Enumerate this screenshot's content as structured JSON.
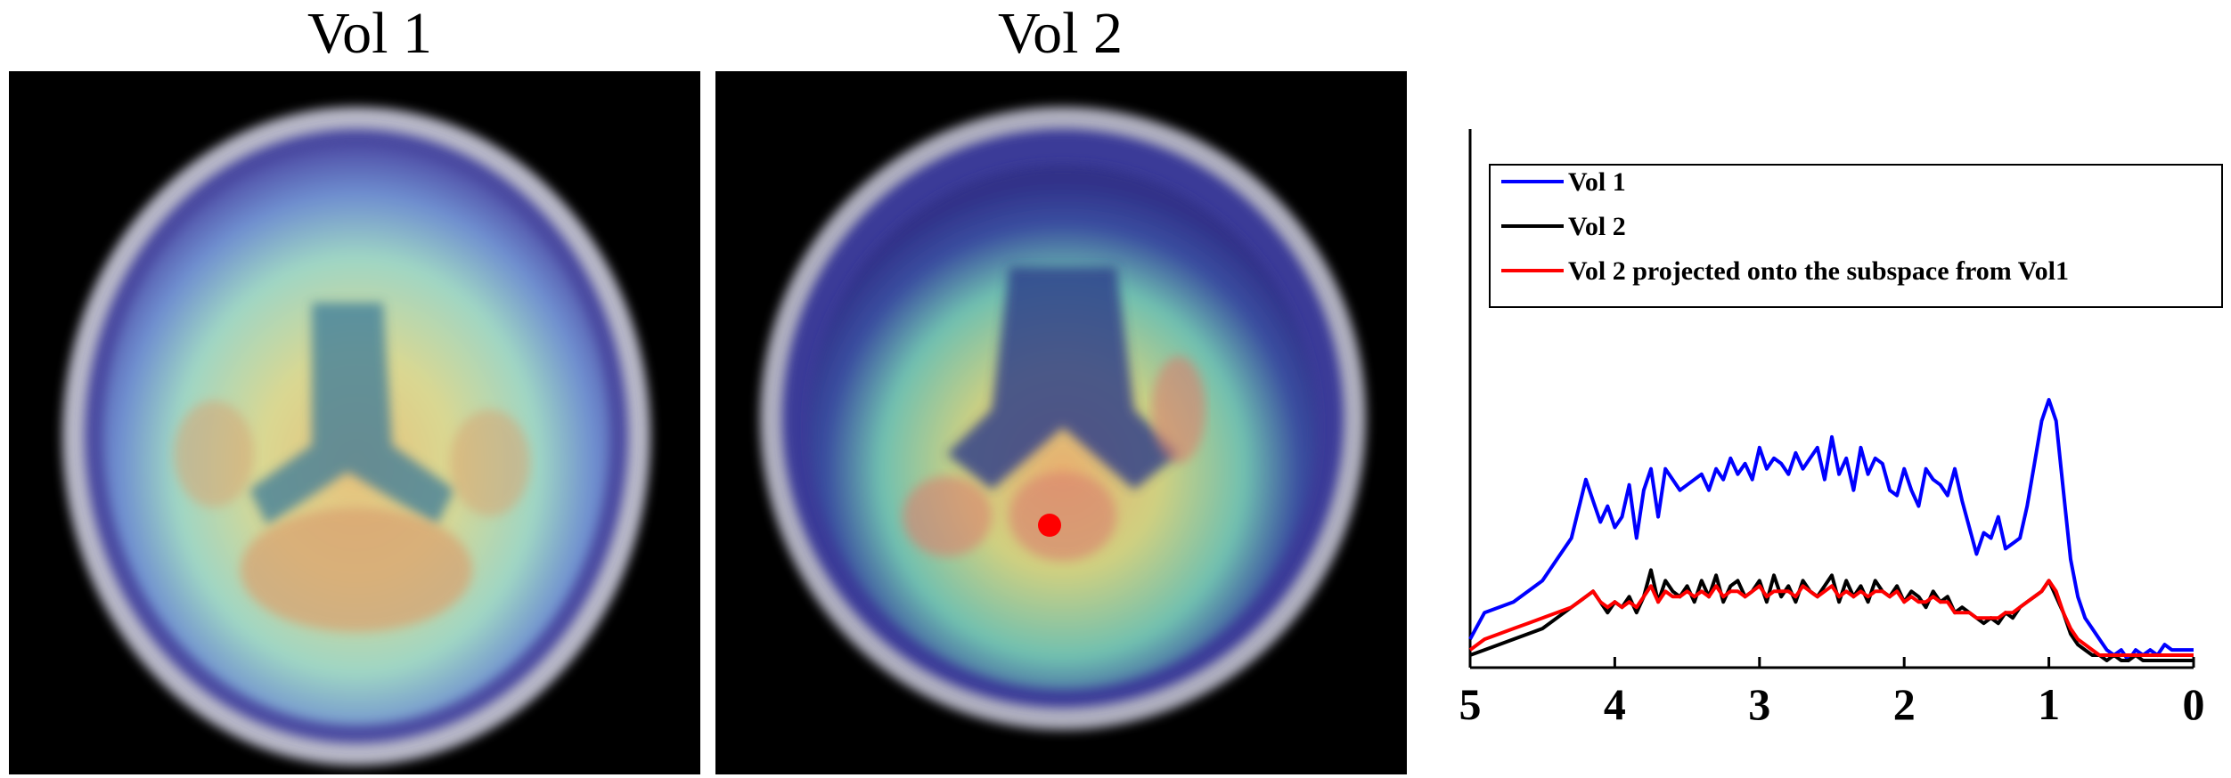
{
  "panels": {
    "vol1_title": "Vol 1",
    "vol2_title": "Vol 2"
  },
  "colors": {
    "vol1": "#0000ff",
    "vol2": "#000000",
    "projected": "#ff0000",
    "marker": "#ff0000"
  },
  "chart_data": {
    "type": "line",
    "xlim": [
      5,
      0
    ],
    "ylim": [
      0,
      1
    ],
    "x_ticks": [
      "5",
      "4",
      "3",
      "2",
      "1",
      "0"
    ],
    "legend_position": "top",
    "grid": false,
    "series": [
      {
        "name": "Vol 1",
        "x": [
          5,
          4.9,
          4.8,
          4.7,
          4.6,
          4.5,
          4.4,
          4.3,
          4.2,
          4.15,
          4.1,
          4.05,
          4,
          3.95,
          3.9,
          3.85,
          3.8,
          3.75,
          3.7,
          3.65,
          3.6,
          3.55,
          3.5,
          3.45,
          3.4,
          3.35,
          3.3,
          3.25,
          3.2,
          3.15,
          3.1,
          3.05,
          3,
          2.95,
          2.9,
          2.85,
          2.8,
          2.75,
          2.7,
          2.65,
          2.6,
          2.55,
          2.5,
          2.45,
          2.4,
          2.35,
          2.3,
          2.25,
          2.2,
          2.15,
          2.1,
          2.05,
          2,
          1.95,
          1.9,
          1.85,
          1.8,
          1.75,
          1.7,
          1.65,
          1.6,
          1.55,
          1.5,
          1.45,
          1.4,
          1.35,
          1.3,
          1.25,
          1.2,
          1.15,
          1.1,
          1.05,
          1,
          0.95,
          0.9,
          0.85,
          0.8,
          0.75,
          0.7,
          0.65,
          0.6,
          0.55,
          0.5,
          0.45,
          0.4,
          0.35,
          0.3,
          0.25,
          0.2,
          0.15,
          0.1,
          0.05,
          0
        ],
        "y": [
          0.05,
          0.1,
          0.11,
          0.12,
          0.14,
          0.16,
          0.2,
          0.24,
          0.35,
          0.31,
          0.27,
          0.3,
          0.26,
          0.28,
          0.34,
          0.24,
          0.33,
          0.37,
          0.28,
          0.37,
          0.35,
          0.33,
          0.34,
          0.35,
          0.36,
          0.33,
          0.37,
          0.35,
          0.39,
          0.36,
          0.38,
          0.35,
          0.41,
          0.37,
          0.39,
          0.38,
          0.36,
          0.4,
          0.37,
          0.39,
          0.41,
          0.35,
          0.43,
          0.36,
          0.39,
          0.33,
          0.41,
          0.36,
          0.39,
          0.38,
          0.33,
          0.32,
          0.37,
          0.33,
          0.3,
          0.37,
          0.35,
          0.34,
          0.32,
          0.37,
          0.31,
          0.26,
          0.21,
          0.25,
          0.24,
          0.28,
          0.22,
          0.23,
          0.24,
          0.3,
          0.38,
          0.46,
          0.5,
          0.46,
          0.33,
          0.2,
          0.13,
          0.09,
          0.07,
          0.05,
          0.03,
          0.02,
          0.03,
          0.01,
          0.03,
          0.02,
          0.03,
          0.02,
          0.04,
          0.03,
          0.03,
          0.03,
          0.03
        ]
      },
      {
        "name": "Vol 2",
        "x": [
          5,
          4.9,
          4.8,
          4.7,
          4.6,
          4.5,
          4.4,
          4.3,
          4.2,
          4.15,
          4.1,
          4.05,
          4,
          3.95,
          3.9,
          3.85,
          3.8,
          3.75,
          3.7,
          3.65,
          3.6,
          3.55,
          3.5,
          3.45,
          3.4,
          3.35,
          3.3,
          3.25,
          3.2,
          3.15,
          3.1,
          3.05,
          3,
          2.95,
          2.9,
          2.85,
          2.8,
          2.75,
          2.7,
          2.65,
          2.6,
          2.55,
          2.5,
          2.45,
          2.4,
          2.35,
          2.3,
          2.25,
          2.2,
          2.15,
          2.1,
          2.05,
          2,
          1.95,
          1.9,
          1.85,
          1.8,
          1.75,
          1.7,
          1.65,
          1.6,
          1.55,
          1.5,
          1.45,
          1.4,
          1.35,
          1.3,
          1.25,
          1.2,
          1.15,
          1.1,
          1.05,
          1,
          0.95,
          0.9,
          0.85,
          0.8,
          0.75,
          0.7,
          0.65,
          0.6,
          0.55,
          0.5,
          0.45,
          0.4,
          0.35,
          0.3,
          0.25,
          0.2,
          0.15,
          0.1,
          0.05,
          0
        ],
        "y": [
          0.02,
          0.03,
          0.04,
          0.05,
          0.06,
          0.07,
          0.09,
          0.11,
          0.13,
          0.14,
          0.12,
          0.1,
          0.12,
          0.11,
          0.13,
          0.1,
          0.13,
          0.18,
          0.12,
          0.16,
          0.14,
          0.13,
          0.15,
          0.12,
          0.16,
          0.13,
          0.17,
          0.12,
          0.15,
          0.16,
          0.13,
          0.14,
          0.16,
          0.12,
          0.17,
          0.13,
          0.15,
          0.12,
          0.16,
          0.14,
          0.13,
          0.15,
          0.17,
          0.12,
          0.16,
          0.13,
          0.15,
          0.12,
          0.16,
          0.14,
          0.13,
          0.15,
          0.12,
          0.14,
          0.13,
          0.11,
          0.14,
          0.12,
          0.13,
          0.1,
          0.11,
          0.1,
          0.09,
          0.08,
          0.09,
          0.08,
          0.1,
          0.09,
          0.11,
          0.12,
          0.13,
          0.14,
          0.16,
          0.13,
          0.1,
          0.06,
          0.04,
          0.03,
          0.02,
          0.02,
          0.01,
          0.02,
          0.01,
          0.01,
          0.02,
          0.01,
          0.01,
          0.01,
          0.01,
          0.01,
          0.01,
          0.01,
          0.01
        ]
      },
      {
        "name": "Vol 2 projected onto the subspace from Vol1",
        "x": [
          5,
          4.9,
          4.8,
          4.7,
          4.6,
          4.5,
          4.4,
          4.3,
          4.2,
          4.15,
          4.1,
          4.05,
          4,
          3.95,
          3.9,
          3.85,
          3.8,
          3.75,
          3.7,
          3.65,
          3.6,
          3.55,
          3.5,
          3.45,
          3.4,
          3.35,
          3.3,
          3.25,
          3.2,
          3.15,
          3.1,
          3.05,
          3,
          2.95,
          2.9,
          2.85,
          2.8,
          2.75,
          2.7,
          2.65,
          2.6,
          2.55,
          2.5,
          2.45,
          2.4,
          2.35,
          2.3,
          2.25,
          2.2,
          2.15,
          2.1,
          2.05,
          2,
          1.95,
          1.9,
          1.85,
          1.8,
          1.75,
          1.7,
          1.65,
          1.6,
          1.55,
          1.5,
          1.45,
          1.4,
          1.35,
          1.3,
          1.25,
          1.2,
          1.15,
          1.1,
          1.05,
          1,
          0.95,
          0.9,
          0.85,
          0.8,
          0.75,
          0.7,
          0.65,
          0.6,
          0.55,
          0.5,
          0.45,
          0.4,
          0.35,
          0.3,
          0.25,
          0.2,
          0.15,
          0.1,
          0.05,
          0
        ],
        "y": [
          0.03,
          0.05,
          0.06,
          0.07,
          0.08,
          0.09,
          0.1,
          0.11,
          0.13,
          0.14,
          0.12,
          0.11,
          0.12,
          0.11,
          0.12,
          0.11,
          0.13,
          0.15,
          0.12,
          0.14,
          0.13,
          0.13,
          0.14,
          0.13,
          0.14,
          0.13,
          0.15,
          0.13,
          0.14,
          0.14,
          0.13,
          0.14,
          0.15,
          0.13,
          0.14,
          0.14,
          0.14,
          0.13,
          0.15,
          0.14,
          0.13,
          0.14,
          0.15,
          0.13,
          0.14,
          0.13,
          0.14,
          0.13,
          0.14,
          0.14,
          0.13,
          0.14,
          0.12,
          0.13,
          0.12,
          0.12,
          0.13,
          0.12,
          0.12,
          0.1,
          0.1,
          0.1,
          0.09,
          0.09,
          0.09,
          0.09,
          0.1,
          0.1,
          0.11,
          0.12,
          0.13,
          0.14,
          0.16,
          0.14,
          0.1,
          0.07,
          0.05,
          0.04,
          0.03,
          0.02,
          0.02,
          0.02,
          0.02,
          0.02,
          0.02,
          0.02,
          0.02,
          0.02,
          0.02,
          0.02,
          0.02,
          0.02,
          0.02
        ]
      }
    ]
  }
}
